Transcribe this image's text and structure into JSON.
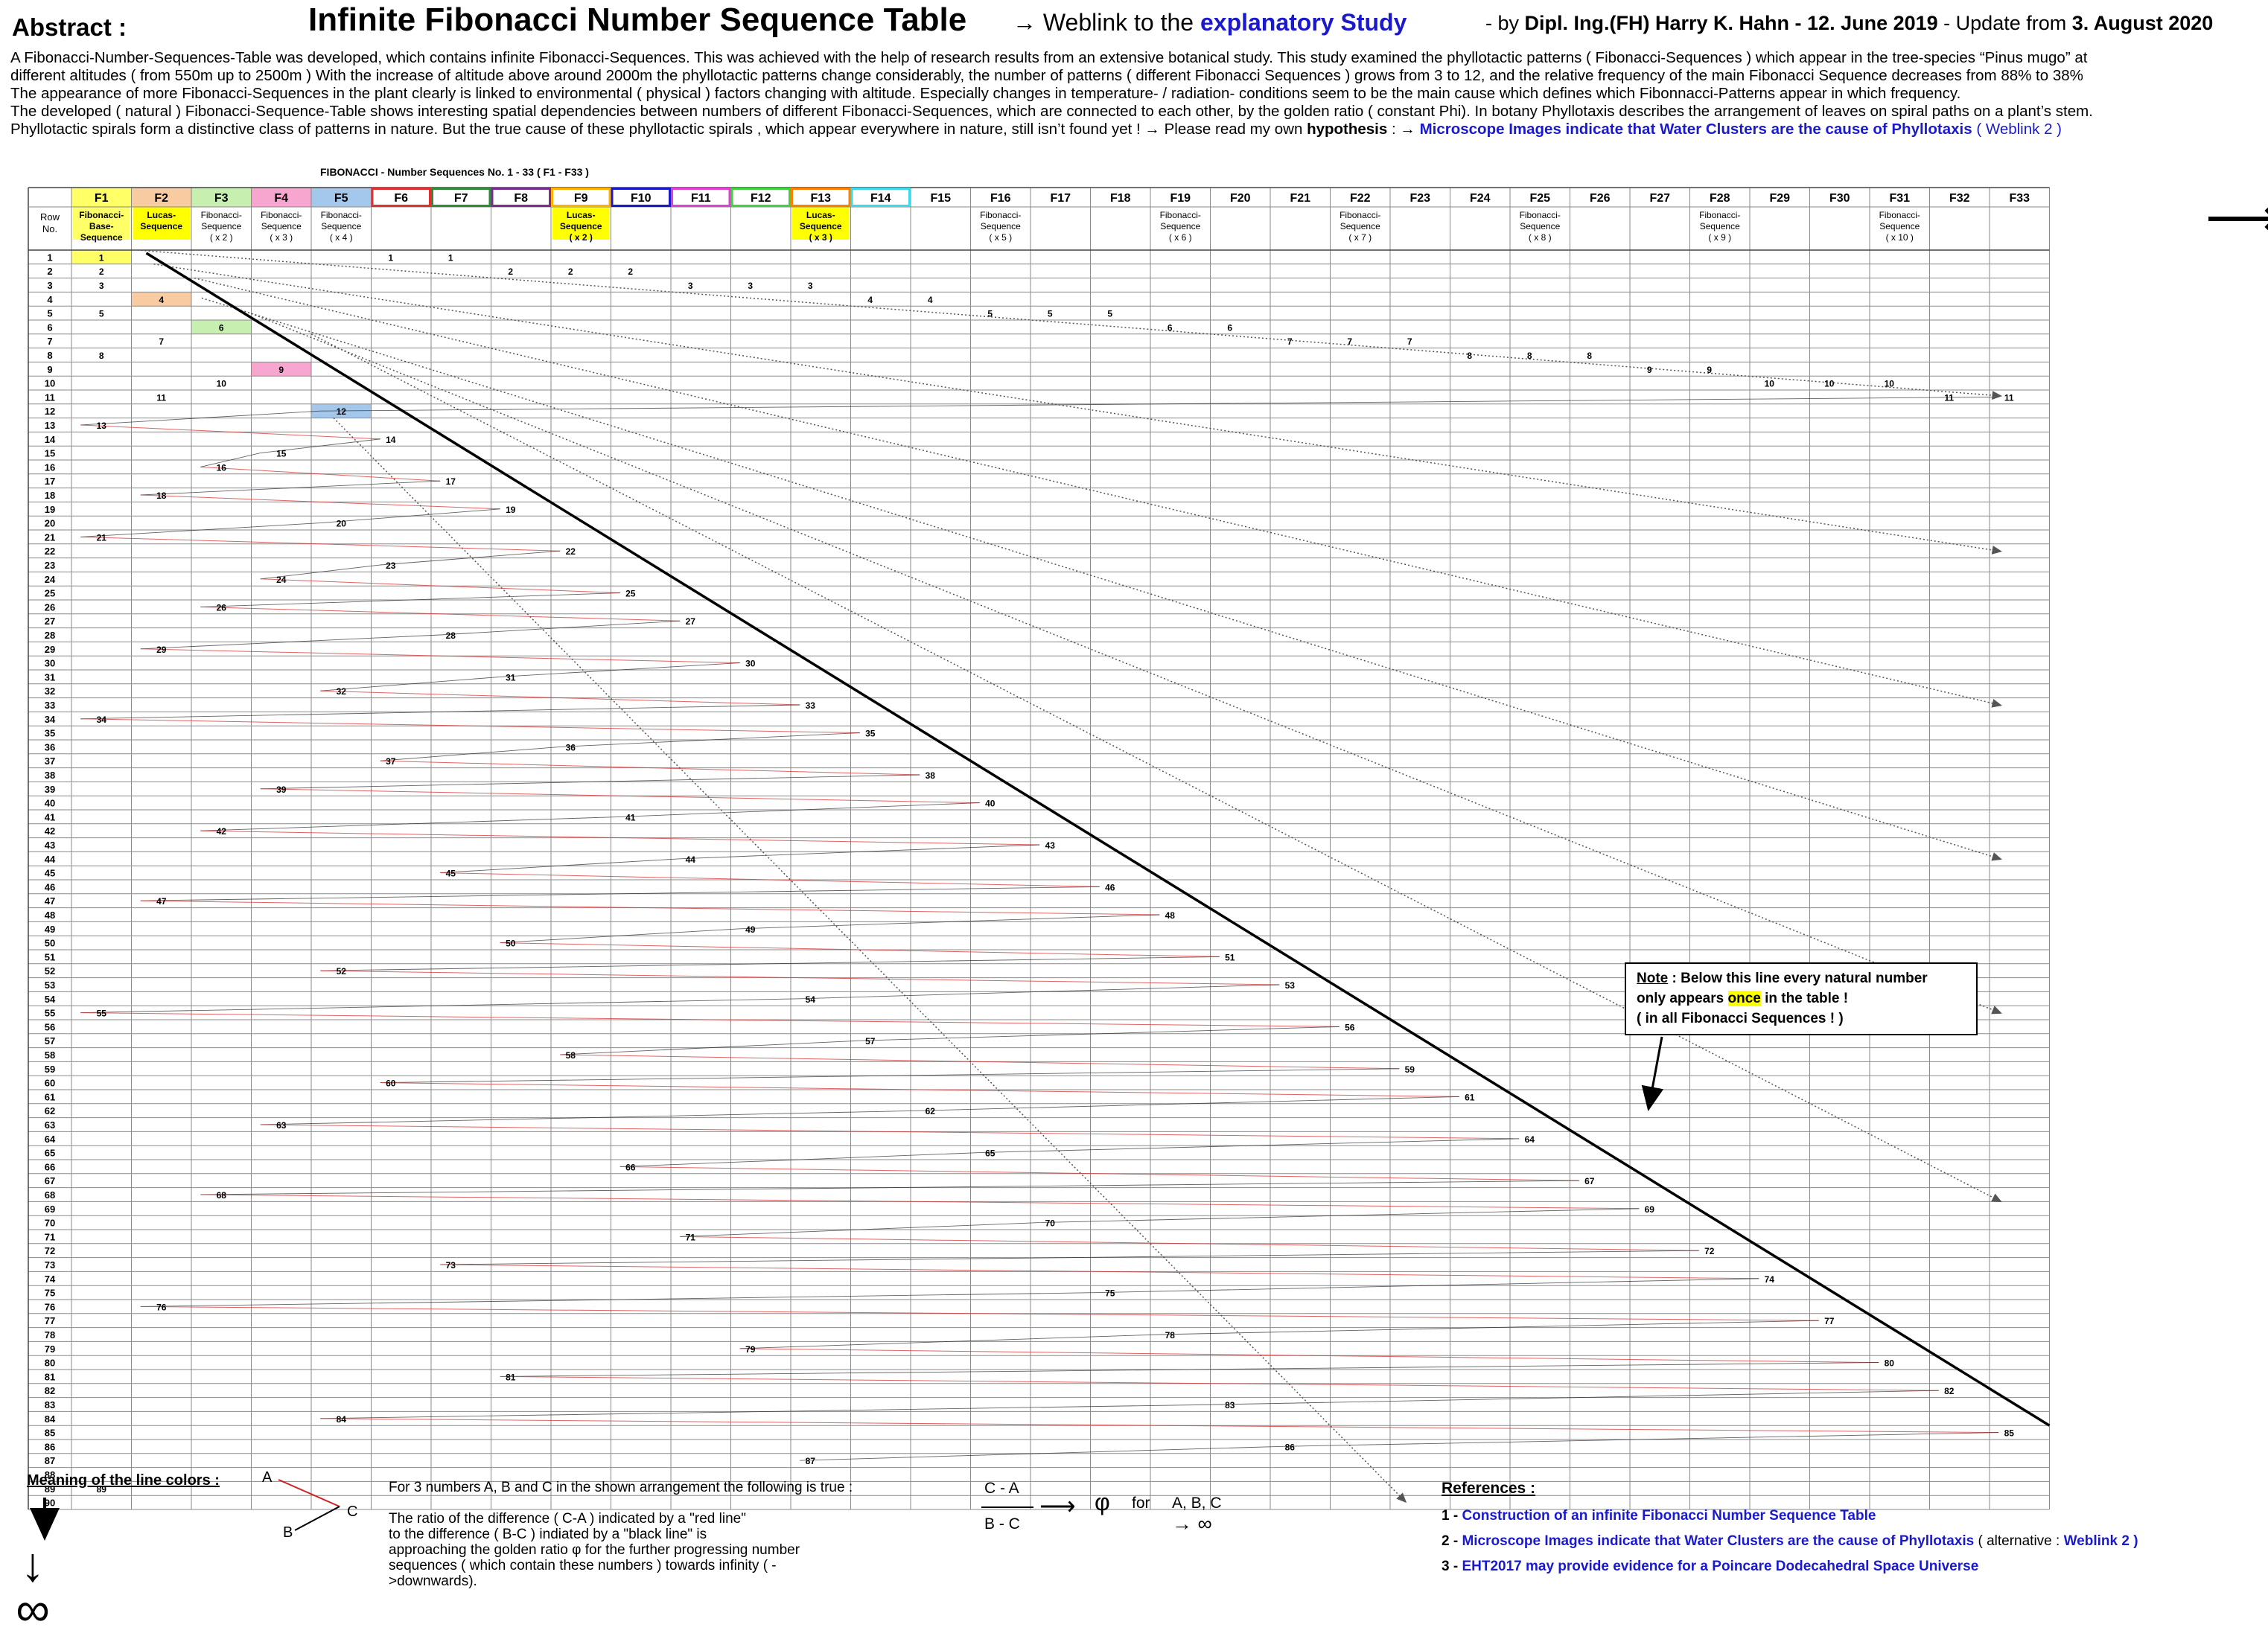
{
  "header": {
    "label": "Abstract :",
    "title": "Infinite Fibonacci Number Sequence Table",
    "link_prefix": "→  Weblink to the ",
    "link_text": "explanatory Study",
    "by_prefix": "- by ",
    "author": "Dipl. Ing.(FH) Harry K. Hahn",
    "date": "-   12. June 2019",
    "update_prefix": " - Update from ",
    "update_date": "3. August 2020"
  },
  "abstract": {
    "lines": [
      "A Fibonacci-Number-Sequences-Table was developed, which contains infinite Fibonacci-Sequences. This was achieved with the help of research results from an extensive botanical study.  This study examined the phyllotactic patterns ( Fibonacci-Sequences ) which appear in the tree-species  “Pinus mugo” at",
      "different altitudes ( from 550m up to 2500m )  With the increase of altitude above around 2000m the phyllotactic patterns change considerably, the number of patterns ( different Fibonacci Sequences ) grows from 3 to 12, and the relative frequency of the main Fibonacci Sequence decreases from 88% to 38%",
      "The appearance of more Fibonacci-Sequences in the plant clearly is linked to environmental ( physical ) factors changing with altitude. Especially changes in temperature- / radiation- conditions  seem to be the main cause which defines which Fibonnacci-Patterns appear in which frequency.",
      "The developed ( natural ) Fibonacci-Sequence-Table shows interesting spatial dependencies between numbers of different Fibonacci-Sequences, which are connected to each other, by the golden ratio ( constant Phi). In botany Phyllotaxis describes the arrangement of leaves on spiral paths on a plant’s stem."
    ],
    "last_line_prefix": "Phyllotactic spirals form a distinctive class of patterns in nature.  But the true cause of these phyllotactic spirals , which appear everywhere in nature, still isn’t found yet !    →  Please read my own ",
    "last_line_bold": "hypothesis",
    "last_line_mid": " :  →  ",
    "last_line_link": "Microscope Images indicate that Water Clusters are the cause of Phyllotaxis",
    "last_line_link2": "  ( Weblink 2 )"
  },
  "table": {
    "caption": "FIBONACCI - Number Sequences  No. 1 - 33   ( F1 - F33 )",
    "row_header": "Row No.",
    "columns": [
      {
        "id": "F1",
        "desc": [
          "Fibonacci-",
          "Base-",
          "Sequence"
        ],
        "color": "#ffff66",
        "box": "#ffff66"
      },
      {
        "id": "F2",
        "desc": [
          "Lucas-",
          "Sequence"
        ],
        "color": "#f8cba0",
        "box": "#ffff00"
      },
      {
        "id": "F3",
        "desc": [
          "Fibonacci-",
          "Sequence",
          "( x 2 )"
        ],
        "color": "#c6efb0",
        "box": ""
      },
      {
        "id": "F4",
        "desc": [
          "Fibonacci-",
          "Sequence",
          "( x 3 )"
        ],
        "color": "#f7a7cf",
        "box": ""
      },
      {
        "id": "F5",
        "desc": [
          "Fibonacci-",
          "Sequence",
          "( x 4 )"
        ],
        "color": "#a4c8ec",
        "box": ""
      },
      {
        "id": "F6",
        "desc": [],
        "color": "#e03030",
        "box": ""
      },
      {
        "id": "F7",
        "desc": [],
        "color": "#2e8b3a",
        "box": ""
      },
      {
        "id": "F8",
        "desc": [],
        "color": "#7a2f8f",
        "box": ""
      },
      {
        "id": "F9",
        "desc": [
          "Lucas-",
          "Sequence",
          "( x 2 )"
        ],
        "color": "#ffb000",
        "box": "#ffff00"
      },
      {
        "id": "F10",
        "desc": [],
        "color": "#1a1acc",
        "box": ""
      },
      {
        "id": "F11",
        "desc": [],
        "color": "#e040d0",
        "box": ""
      },
      {
        "id": "F12",
        "desc": [],
        "color": "#40d040",
        "box": ""
      },
      {
        "id": "F13",
        "desc": [
          "Lucas-",
          "Sequence",
          "( x 3 )"
        ],
        "color": "#ff8000",
        "box": "#ffff00"
      },
      {
        "id": "F14",
        "desc": [],
        "color": "#40d8e8",
        "box": ""
      },
      {
        "id": "F15",
        "desc": [],
        "color": "",
        "box": ""
      },
      {
        "id": "F16",
        "desc": [
          "Fibonacci-",
          "Sequence",
          "( x 5 )"
        ],
        "color": "",
        "box": ""
      },
      {
        "id": "F17",
        "desc": [],
        "color": "",
        "box": ""
      },
      {
        "id": "F18",
        "desc": [],
        "color": "",
        "box": ""
      },
      {
        "id": "F19",
        "desc": [
          "Fibonacci-",
          "Sequence",
          "( x 6 )"
        ],
        "color": "",
        "box": ""
      },
      {
        "id": "F20",
        "desc": [],
        "color": "",
        "box": ""
      },
      {
        "id": "F21",
        "desc": [],
        "color": "",
        "box": ""
      },
      {
        "id": "F22",
        "desc": [
          "Fibonacci-",
          "Sequence",
          "( x 7 )"
        ],
        "color": "",
        "box": ""
      },
      {
        "id": "F23",
        "desc": [],
        "color": "",
        "box": ""
      },
      {
        "id": "F24",
        "desc": [],
        "color": "",
        "box": ""
      },
      {
        "id": "F25",
        "desc": [
          "Fibonacci-",
          "Sequence",
          "( x 8 )"
        ],
        "color": "",
        "box": ""
      },
      {
        "id": "F26",
        "desc": [],
        "color": "",
        "box": ""
      },
      {
        "id": "F27",
        "desc": [],
        "color": "",
        "box": ""
      },
      {
        "id": "F28",
        "desc": [
          "Fibonacci-",
          "Sequence",
          "( x 9 )"
        ],
        "color": "",
        "box": ""
      },
      {
        "id": "F29",
        "desc": [],
        "color": "",
        "box": ""
      },
      {
        "id": "F30",
        "desc": [],
        "color": "",
        "box": ""
      },
      {
        "id": "F31",
        "desc": [
          "Fibonacci-",
          "Sequence",
          "( x 10 )"
        ],
        "color": "",
        "box": ""
      },
      {
        "id": "F32",
        "desc": [],
        "color": "",
        "box": ""
      },
      {
        "id": "F33",
        "desc": [],
        "color": "",
        "box": ""
      }
    ],
    "row_count": 90,
    "cell_colors": {
      "1:1": "#ffff66",
      "4:2": "#f8cba0",
      "6:3": "#c6efb0",
      "9:4": "#f7a7cf",
      "12:5": "#a4c8ec"
    },
    "sequences": [
      [
        1,
        2,
        3,
        5,
        8,
        13,
        21,
        34,
        55,
        89
      ],
      [
        4,
        7,
        11,
        18,
        29,
        47,
        76
      ],
      [
        6,
        10,
        16,
        26,
        42,
        68
      ],
      [
        9,
        15,
        24,
        39,
        63
      ],
      [
        12,
        20,
        32,
        52,
        84
      ],
      [
        1,
        14,
        23,
        37,
        60
      ],
      [
        1,
        17,
        28,
        45,
        73
      ],
      [
        2,
        19,
        31,
        50,
        81
      ],
      [
        2,
        22,
        36,
        58
      ],
      [
        2,
        25,
        41,
        66
      ],
      [
        3,
        27,
        44,
        71
      ],
      [
        3,
        30,
        49,
        79
      ],
      [
        3,
        33,
        54,
        87
      ],
      [
        4,
        35,
        57
      ],
      [
        4,
        38,
        62
      ],
      [
        5,
        40,
        65
      ],
      [
        5,
        43,
        70
      ],
      [
        5,
        46,
        75
      ],
      [
        6,
        48,
        78
      ],
      [
        6,
        51,
        83
      ],
      [
        7,
        53,
        86
      ],
      [
        7,
        56
      ],
      [
        7,
        59
      ],
      [
        8,
        61
      ],
      [
        8,
        64
      ],
      [
        8,
        67
      ],
      [
        9,
        69
      ],
      [
        9,
        72
      ],
      [
        10,
        74
      ],
      [
        10,
        77
      ],
      [
        10,
        80
      ],
      [
        11,
        82
      ],
      [
        11,
        85
      ]
    ]
  },
  "note": {
    "title": "Note",
    "line1_rest": " : Below this line every natural number",
    "line2_pre": "only appears ",
    "line2_hl": "once",
    "line2_post": " in the table !",
    "line3": "( in all Fibonacci Sequences ! )"
  },
  "legend": {
    "title": "Meaning of the line colors :",
    "a": "A",
    "b": "B",
    "c": "C",
    "text_lines": [
      "For 3 numbers  A, B and C in the shown arrangement  the following is true :",
      "",
      "The ratio of the difference  ( C-A )  indicated by a \"red line\"",
      "to the difference  ( B-C )  indiated by a \"black line\" is",
      "approaching  the golden ratio φ for the further progressing number",
      "sequences  ( which contain these numbers  ) towards infinity ( -",
      ">downwards)."
    ],
    "formula_num": "C - A",
    "formula_den": "B - C",
    "phi": "φ",
    "for": "for",
    "abc": "A, B, C",
    "to_inf": "→ ∞"
  },
  "references": {
    "title": "References :",
    "items": [
      {
        "num": "1  -  ",
        "link": "Construction of an infinite Fibonacci Number Sequence Table",
        "suffix": "",
        "link2": ""
      },
      {
        "num": "2  -  ",
        "link": "Microscope Images indicate that Water Clusters are the cause of Phyllotaxis",
        "suffix": "   ( alternative : ",
        "link2": "Weblink 2 )"
      },
      {
        "num": "3  -  ",
        "link": "EHT2017 may provide evidence for a Poincare Dodecahedral Space Universe",
        "suffix": "",
        "link2": ""
      }
    ]
  },
  "infinity": "∞",
  "bottom_infinity": "↓\n∞",
  "colors": {
    "grid": "#888888",
    "red_lines": "#d02020",
    "black_lines": "#000000",
    "link": "#1a1acc"
  }
}
